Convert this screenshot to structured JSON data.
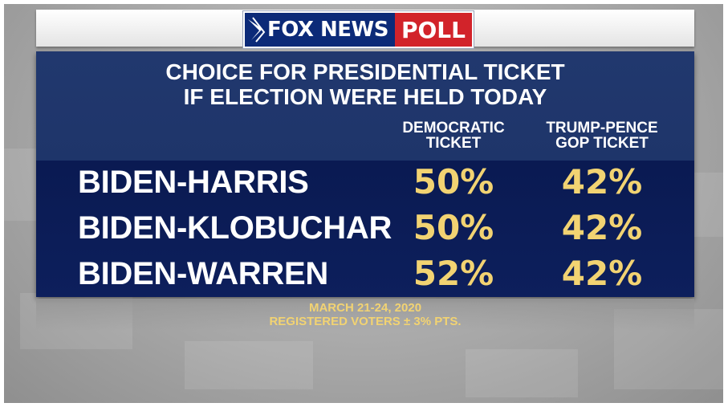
{
  "brand": {
    "fox_news": "FOX NEWS",
    "poll": "POLL",
    "logo_color_blue": "#0c2a78",
    "logo_color_red": "#d2232a"
  },
  "headline": {
    "line1": "CHOICE FOR PRESIDENTIAL TICKET",
    "line2": "IF ELECTION WERE HELD TODAY"
  },
  "columns": [
    {
      "line1": "DEMOCRATIC",
      "line2": "TICKET"
    },
    {
      "line1": "TRUMP-PENCE",
      "line2": "GOP TICKET"
    }
  ],
  "rows": [
    {
      "label": "BIDEN-HARRIS",
      "dem": "50%",
      "gop": "42%"
    },
    {
      "label": "BIDEN-KLOBUCHAR",
      "dem": "50%",
      "gop": "42%"
    },
    {
      "label": "BIDEN-WARREN",
      "dem": "52%",
      "gop": "42%"
    }
  ],
  "footer": {
    "dates": "MARCH 21-24, 2020",
    "sample": "REGISTERED VOTERS ± 3% PTS."
  },
  "colors": {
    "panel": "#21386e",
    "band": "#0a1a52",
    "value_gold": "#f2d372"
  }
}
